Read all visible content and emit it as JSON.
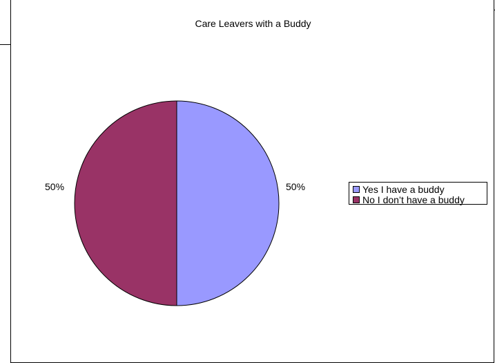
{
  "chart_data": {
    "type": "pie",
    "title": "Care Leavers with a Buddy",
    "categories": [
      "Yes I have a buddy",
      "No I don’t have a buddy"
    ],
    "values": [
      50,
      50
    ],
    "data_labels": [
      "50%",
      "50%"
    ],
    "colors": [
      "#9999ff",
      "#993366"
    ],
    "legend_position": "right",
    "start_angle": "12 o'clock",
    "direction": "clockwise"
  }
}
